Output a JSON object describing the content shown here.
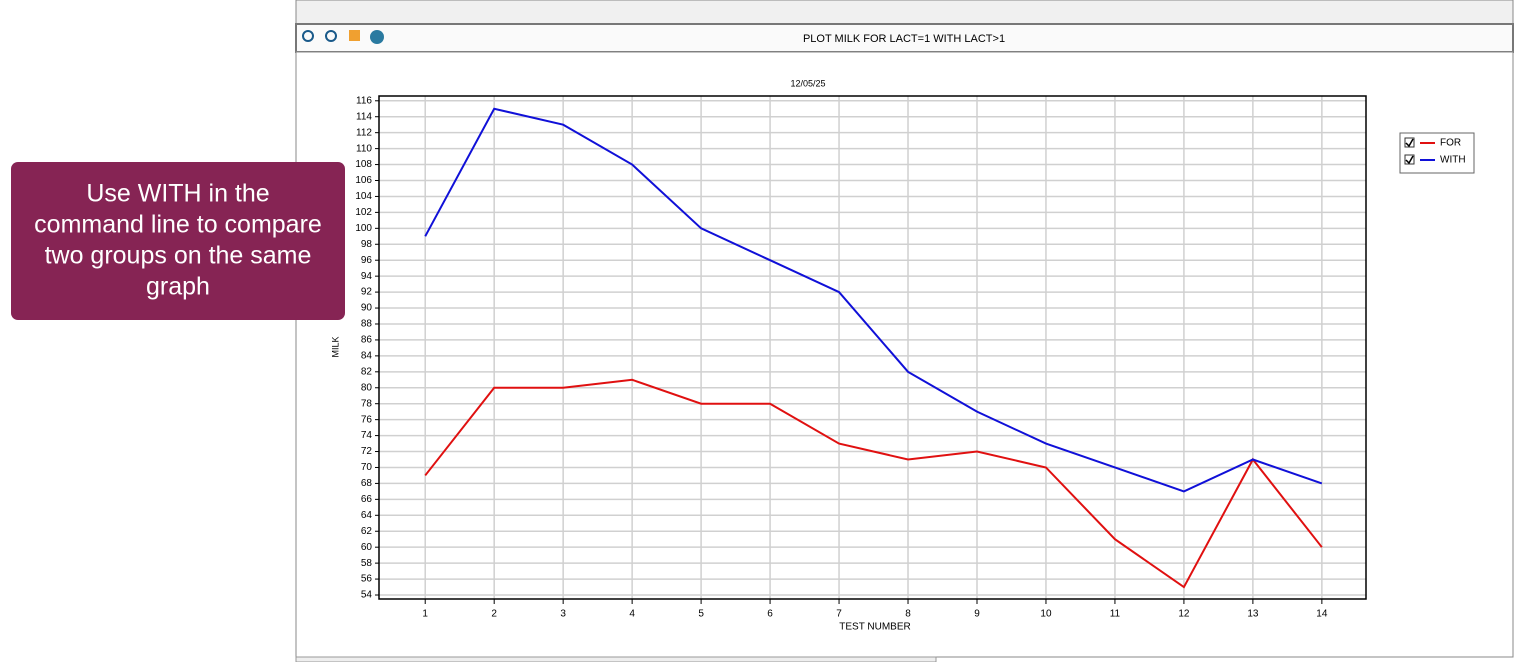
{
  "callout": [
    "Use WITH in the",
    "command line to compare",
    "two groups on the same",
    "graph"
  ],
  "window_title": "PLOT MILK FOR LACT=1 WITH LACT>1",
  "chart_data": {
    "type": "line",
    "subtitle": "12/05/25",
    "x_label": "TEST NUMBER",
    "y_label": "MILK",
    "x": [
      1,
      2,
      3,
      4,
      5,
      6,
      7,
      8,
      9,
      10,
      11,
      12,
      13,
      14
    ],
    "series": [
      {
        "name": "FOR",
        "color": "#e01010",
        "values": [
          69,
          80,
          80,
          81,
          78,
          78,
          73,
          71,
          72,
          70,
          61,
          55,
          71,
          60
        ]
      },
      {
        "name": "WITH",
        "color": "#1010d8",
        "values": [
          99,
          115,
          113,
          108,
          100,
          96,
          92,
          82,
          77,
          73,
          70,
          67,
          71,
          68
        ]
      }
    ],
    "xlim": [
      0.33,
      14.64
    ],
    "xticks": [
      1,
      2,
      3,
      4,
      5,
      6,
      7,
      8,
      9,
      10,
      11,
      12,
      13,
      14
    ],
    "ylim": [
      53.5,
      116.6
    ],
    "yticks": [
      54,
      56,
      58,
      60,
      62,
      64,
      66,
      68,
      70,
      72,
      74,
      76,
      78,
      80,
      82,
      84,
      86,
      88,
      90,
      92,
      94,
      96,
      98,
      100,
      102,
      104,
      106,
      108,
      110,
      112,
      114,
      116
    ],
    "grid": true,
    "legend": "right"
  }
}
